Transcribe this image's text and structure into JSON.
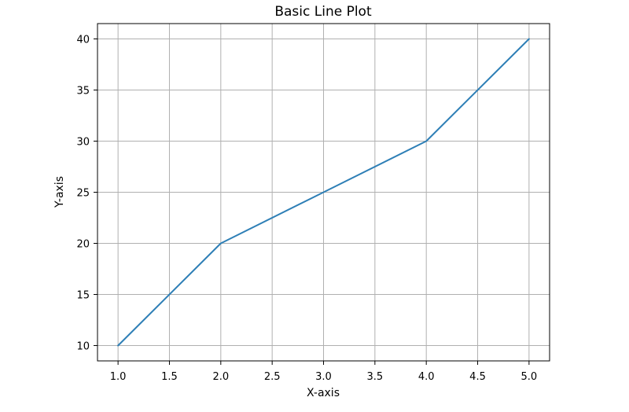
{
  "chart_data": {
    "type": "line",
    "title": "Basic Line Plot",
    "xlabel": "X-axis",
    "ylabel": "Y-axis",
    "x": [
      1,
      2,
      3,
      4,
      5
    ],
    "series": [
      {
        "values": [
          10,
          20,
          25,
          30,
          40
        ],
        "color": "#2e7fb6"
      }
    ],
    "xlim": [
      0.8,
      5.2
    ],
    "ylim": [
      8.5,
      41.5
    ],
    "xticks": [
      "1.0",
      "1.5",
      "2.0",
      "2.5",
      "3.0",
      "3.5",
      "4.0",
      "4.5",
      "5.0"
    ],
    "yticks": [
      "10",
      "15",
      "20",
      "25",
      "30",
      "35",
      "40"
    ],
    "grid": true,
    "legend": "none"
  }
}
